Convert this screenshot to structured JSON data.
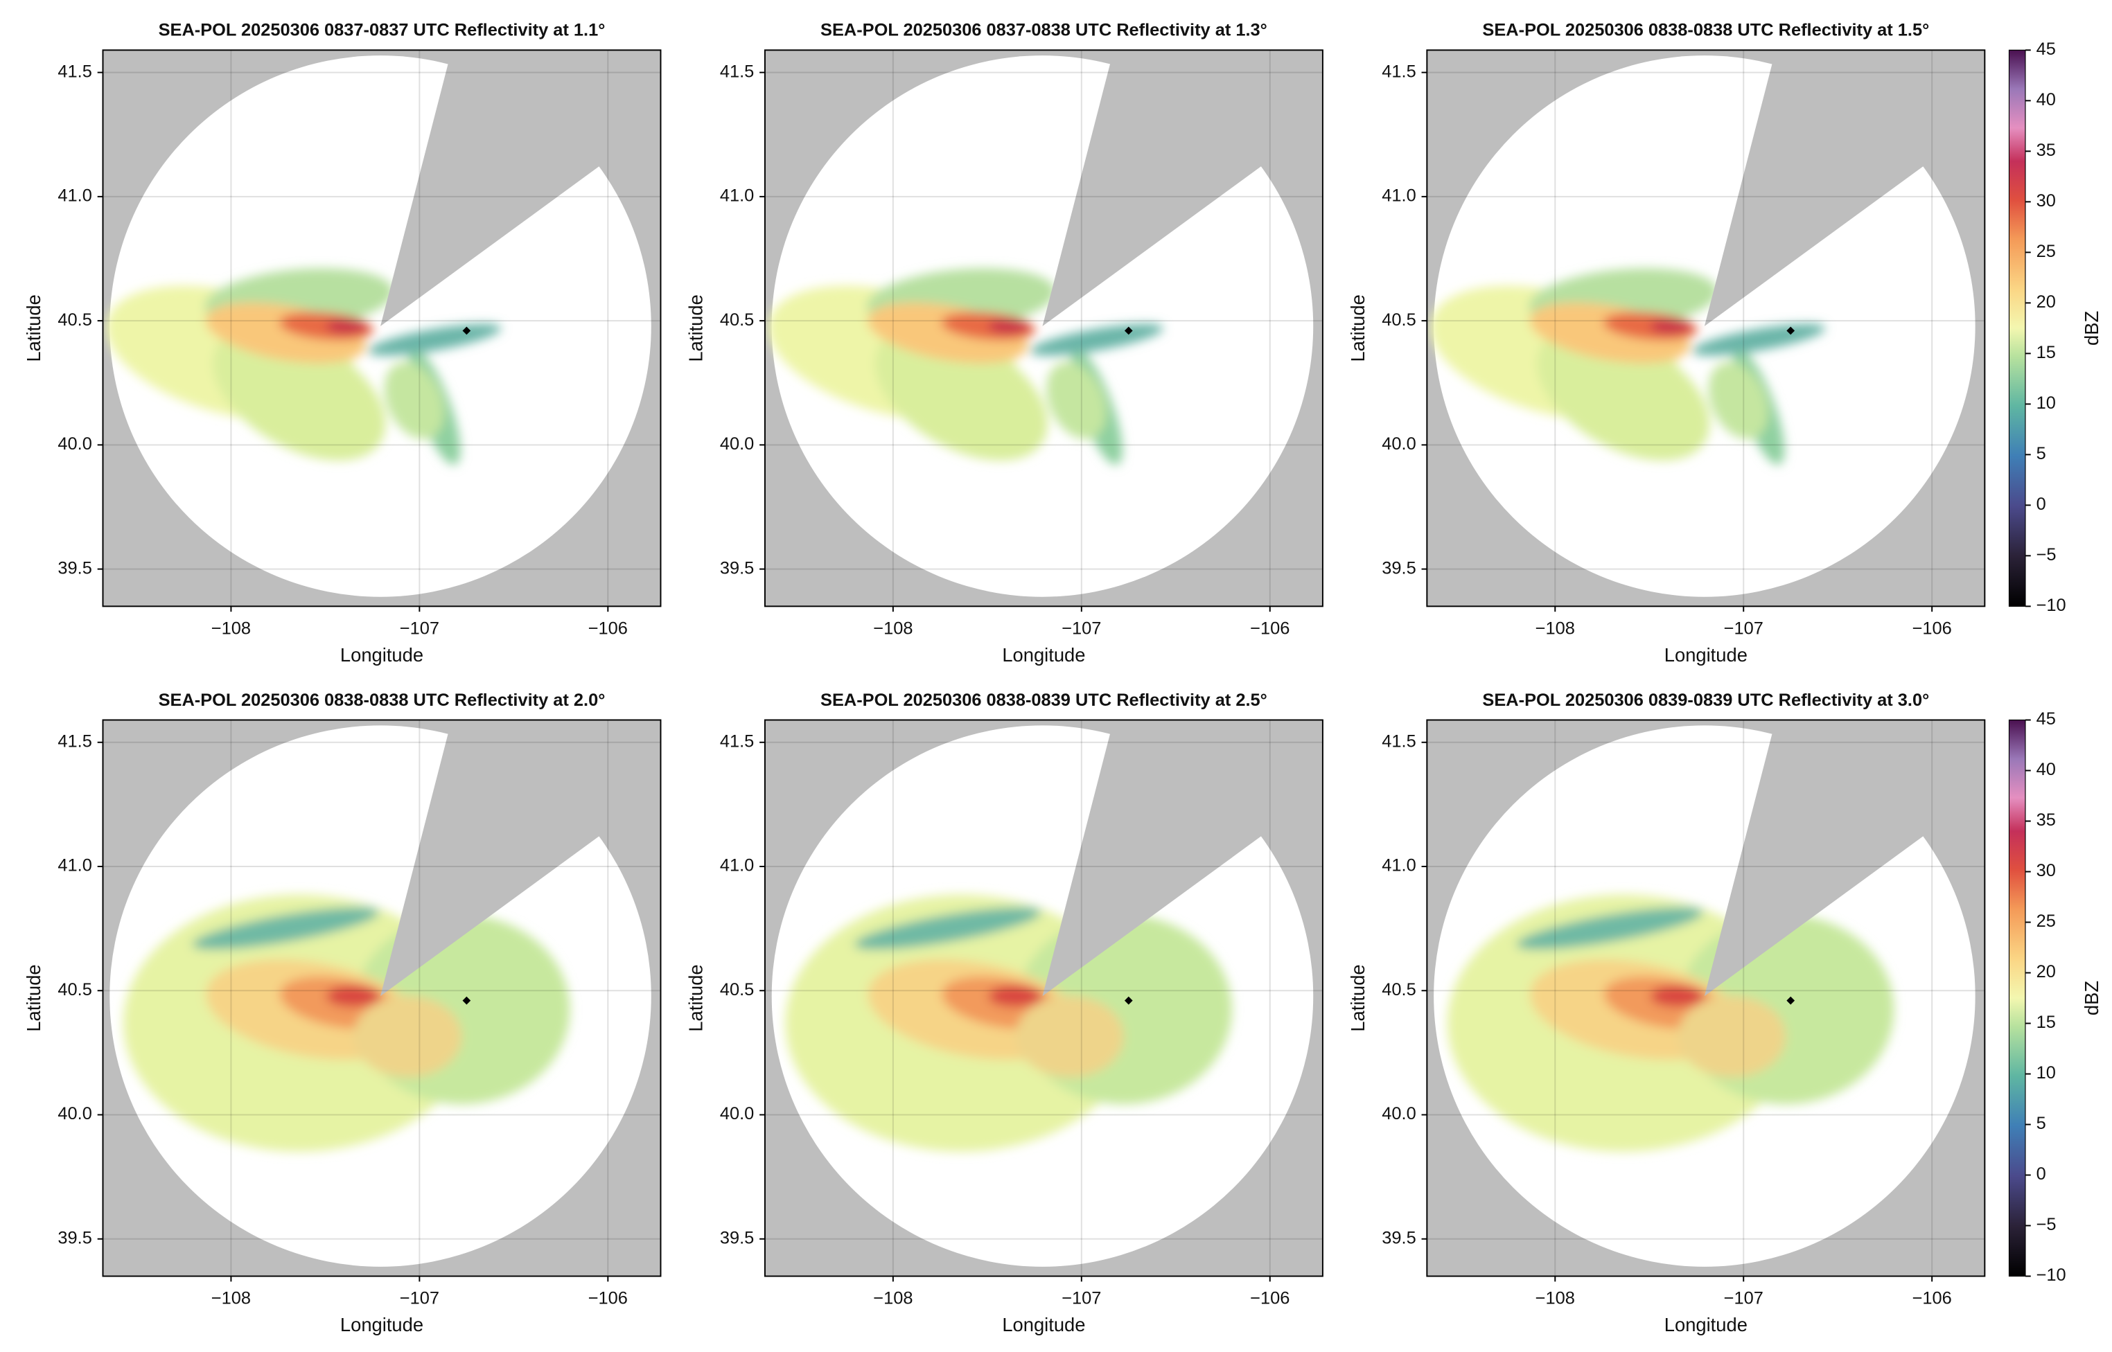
{
  "chart_data": [
    {
      "type": "radar",
      "title": "SEA-POL 20250306 0837-0837 UTC Reflectivity at 1.1°",
      "xlabel": "Longitude",
      "ylabel": "Latitude",
      "xlim": [
        -108.68,
        -105.72
      ],
      "ylim": [
        39.35,
        41.59
      ],
      "xticks": [
        {
          "value": -108,
          "label": "−108"
        },
        {
          "value": -107,
          "label": "−107"
        },
        {
          "value": -106,
          "label": "−106"
        }
      ],
      "yticks": [
        39.5,
        {
          "value": 40.0,
          "label": "40.0"
        },
        40.5,
        {
          "value": 41.0,
          "label": "41.0"
        },
        41.5
      ],
      "grid": true,
      "points": {
        "x": [
          -106.75
        ],
        "y": [
          40.46
        ]
      }
    },
    {
      "type": "radar",
      "title": "SEA-POL 20250306 0837-0838 UTC Reflectivity at 1.3°",
      "xlabel": "Longitude",
      "ylabel": "Latitude",
      "xlim": [
        -108.68,
        -105.72
      ],
      "ylim": [
        39.35,
        41.59
      ],
      "xticks": [
        {
          "value": -108,
          "label": "−108"
        },
        {
          "value": -107,
          "label": "−107"
        },
        {
          "value": -106,
          "label": "−106"
        }
      ],
      "yticks": [
        39.5,
        {
          "value": 40.0,
          "label": "40.0"
        },
        40.5,
        {
          "value": 41.0,
          "label": "41.0"
        },
        41.5
      ],
      "grid": true,
      "points": {
        "x": [
          -106.75
        ],
        "y": [
          40.46
        ]
      }
    },
    {
      "type": "radar",
      "title": "SEA-POL 20250306 0838-0838 UTC Reflectivity at 1.5°",
      "xlabel": "Longitude",
      "ylabel": "Latitude",
      "xlim": [
        -108.68,
        -105.72
      ],
      "ylim": [
        39.35,
        41.59
      ],
      "xticks": [
        {
          "value": -108,
          "label": "−108"
        },
        {
          "value": -107,
          "label": "−107"
        },
        {
          "value": -106,
          "label": "−106"
        }
      ],
      "yticks": [
        39.5,
        {
          "value": 40.0,
          "label": "40.0"
        },
        40.5,
        {
          "value": 41.0,
          "label": "41.0"
        },
        41.5
      ],
      "grid": true,
      "points": {
        "x": [
          -106.75
        ],
        "y": [
          40.46
        ]
      },
      "colorbar": {
        "label": "dBZ",
        "clim": [
          -10,
          45
        ],
        "ticks": [
          {
            "value": -10,
            "label": "−10"
          },
          {
            "value": -5,
            "label": "−5"
          },
          0,
          5,
          10,
          15,
          20,
          25,
          30,
          35,
          40,
          45
        ]
      }
    },
    {
      "type": "radar",
      "title": "SEA-POL 20250306 0838-0838 UTC Reflectivity at 2.0°",
      "xlabel": "Longitude",
      "ylabel": "Latitude",
      "xlim": [
        -108.68,
        -105.72
      ],
      "ylim": [
        39.35,
        41.59
      ],
      "xticks": [
        {
          "value": -108,
          "label": "−108"
        },
        {
          "value": -107,
          "label": "−107"
        },
        {
          "value": -106,
          "label": "−106"
        }
      ],
      "yticks": [
        39.5,
        {
          "value": 40.0,
          "label": "40.0"
        },
        40.5,
        {
          "value": 41.0,
          "label": "41.0"
        },
        41.5
      ],
      "grid": true,
      "points": {
        "x": [
          -106.75
        ],
        "y": [
          40.46
        ]
      }
    },
    {
      "type": "radar",
      "title": "SEA-POL 20250306 0838-0839 UTC Reflectivity at 2.5°",
      "xlabel": "Longitude",
      "ylabel": "Latitude",
      "xlim": [
        -108.68,
        -105.72
      ],
      "ylim": [
        39.35,
        41.59
      ],
      "xticks": [
        {
          "value": -108,
          "label": "−108"
        },
        {
          "value": -107,
          "label": "−107"
        },
        {
          "value": -106,
          "label": "−106"
        }
      ],
      "yticks": [
        39.5,
        {
          "value": 40.0,
          "label": "40.0"
        },
        40.5,
        {
          "value": 41.0,
          "label": "41.0"
        },
        41.5
      ],
      "grid": true,
      "points": {
        "x": [
          -106.75
        ],
        "y": [
          40.46
        ]
      }
    },
    {
      "type": "radar",
      "title": "SEA-POL 20250306 0839-0839 UTC Reflectivity at 3.0°",
      "xlabel": "Longitude",
      "ylabel": "Latitude",
      "xlim": [
        -108.68,
        -105.72
      ],
      "ylim": [
        39.35,
        41.59
      ],
      "xticks": [
        {
          "value": -108,
          "label": "−108"
        },
        {
          "value": -107,
          "label": "−107"
        },
        {
          "value": -106,
          "label": "−106"
        }
      ],
      "yticks": [
        39.5,
        {
          "value": 40.0,
          "label": "40.0"
        },
        40.5,
        {
          "value": 41.0,
          "label": "41.0"
        },
        41.5
      ],
      "grid": true,
      "points": {
        "x": [
          -106.75
        ],
        "y": [
          40.46
        ]
      },
      "colorbar": {
        "label": "dBZ",
        "clim": [
          -10,
          45
        ],
        "ticks": [
          {
            "value": -10,
            "label": "−10"
          },
          {
            "value": -5,
            "label": "−5"
          },
          0,
          5,
          10,
          15,
          20,
          25,
          30,
          35,
          40,
          45
        ]
      }
    }
  ]
}
